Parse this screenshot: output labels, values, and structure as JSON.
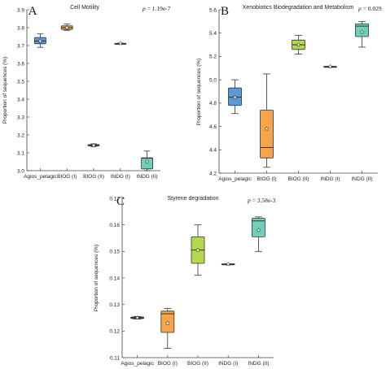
{
  "chart_data": [
    {
      "type": "box",
      "panel_letter": "A",
      "title": "Cell Motility",
      "p_label": "p",
      "p_value": "= 1.19e-7",
      "ylabel": "Proportion of sequences (%)",
      "ylim": [
        3.0,
        3.9
      ],
      "yticks": [
        "3.0",
        "3.1",
        "3.2",
        "3.3",
        "3.4",
        "3.5",
        "3.6",
        "3.7",
        "3.8",
        "3.9"
      ],
      "ytick_values": [
        3.0,
        3.1,
        3.2,
        3.3,
        3.4,
        3.5,
        3.6,
        3.7,
        3.8,
        3.9
      ],
      "categories": [
        "Agios_pelagic",
        "BIOG (I)",
        "BIOG (II)",
        "INDG (I)",
        "INDG (II)"
      ],
      "boxes": [
        {
          "min": 3.69,
          "q1": 3.71,
          "median": 3.725,
          "q3": 3.745,
          "max": 3.765,
          "mean": 3.725,
          "color": "#5b9bd5"
        },
        {
          "min": 3.785,
          "q1": 3.79,
          "median": 3.8,
          "q3": 3.81,
          "max": 3.82,
          "mean": 3.8,
          "color": "#f7a44b"
        },
        {
          "min": 3.135,
          "q1": 3.138,
          "median": 3.142,
          "q3": 3.146,
          "max": 3.15,
          "mean": 3.142,
          "color": "#b5d84a"
        },
        {
          "min": 3.711,
          "q1": 3.712,
          "median": 3.712,
          "q3": 3.712,
          "max": 3.713,
          "mean": 3.712,
          "color": "#c8c8c8"
        },
        {
          "min": 3.0,
          "q1": 3.01,
          "median": 3.07,
          "q3": 3.072,
          "max": 3.11,
          "mean": 3.05,
          "color": "#6fcfb7"
        }
      ]
    },
    {
      "type": "box",
      "panel_letter": "B",
      "title": "Xenobiotics Biodegradation and Metabolism",
      "p_label": "p",
      "p_value": "= 0.029",
      "ylabel": "Proportion of sequences (%)",
      "ylim": [
        4.2,
        5.6
      ],
      "yticks": [
        "4.2",
        "4.4",
        "4.6",
        "4.8",
        "5.0",
        "5.2",
        "5.4",
        "5.6"
      ],
      "ytick_values": [
        4.2,
        4.4,
        4.6,
        4.8,
        5.0,
        5.2,
        5.4,
        5.6
      ],
      "categories": [
        "Agios_pelagic",
        "BIOG (I)",
        "BIOG (II)",
        "INDG (I)",
        "INDG (II)"
      ],
      "boxes": [
        {
          "min": 4.71,
          "q1": 4.78,
          "median": 4.85,
          "q3": 4.93,
          "max": 5.0,
          "mean": 4.85,
          "color": "#5b9bd5"
        },
        {
          "min": 4.25,
          "q1": 4.33,
          "median": 4.42,
          "q3": 4.74,
          "max": 5.05,
          "mean": 4.58,
          "color": "#f7a44b"
        },
        {
          "min": 5.22,
          "q1": 5.26,
          "median": 5.3,
          "q3": 5.34,
          "max": 5.38,
          "mean": 5.3,
          "color": "#b5d84a"
        },
        {
          "min": 5.11,
          "q1": 5.11,
          "median": 5.11,
          "q3": 5.115,
          "max": 5.115,
          "mean": 5.113,
          "color": "#c8c8c8"
        },
        {
          "min": 5.28,
          "q1": 5.37,
          "median": 5.46,
          "q3": 5.48,
          "max": 5.5,
          "mean": 5.41,
          "color": "#6fcfb7"
        }
      ]
    },
    {
      "type": "box",
      "panel_letter": "C",
      "title": "Styrene degradation",
      "p_label": "p",
      "p_value": "= 3.58e-3",
      "ylabel": "Proportion of sequences (%)",
      "ylim": [
        0.11,
        0.17
      ],
      "yticks": [
        "0.11",
        "0.12",
        "0.13",
        "0.14",
        "0.15",
        "0.16",
        "0.17"
      ],
      "ytick_values": [
        0.11,
        0.12,
        0.13,
        0.14,
        0.15,
        0.16,
        0.17
      ],
      "categories": [
        "Agios_pelagic",
        "BIOG (I)",
        "BIOG (II)",
        "INDG (I)",
        "INDG (II)"
      ],
      "boxes": [
        {
          "min": 0.1245,
          "q1": 0.1247,
          "median": 0.125,
          "q3": 0.1253,
          "max": 0.1255,
          "mean": 0.125,
          "color": "#5b9bd5"
        },
        {
          "min": 0.1135,
          "q1": 0.1195,
          "median": 0.1265,
          "q3": 0.1275,
          "max": 0.1285,
          "mean": 0.123,
          "color": "#f7a44b"
        },
        {
          "min": 0.141,
          "q1": 0.1455,
          "median": 0.1505,
          "q3": 0.1555,
          "max": 0.16,
          "mean": 0.1505,
          "color": "#b5d84a"
        },
        {
          "min": 0.1452,
          "q1": 0.1452,
          "median": 0.1452,
          "q3": 0.1453,
          "max": 0.1453,
          "mean": 0.1452,
          "color": "#c8c8c8"
        },
        {
          "min": 0.15,
          "q1": 0.1555,
          "median": 0.1615,
          "q3": 0.1625,
          "max": 0.163,
          "mean": 0.158,
          "color": "#6fcfb7"
        }
      ]
    }
  ]
}
